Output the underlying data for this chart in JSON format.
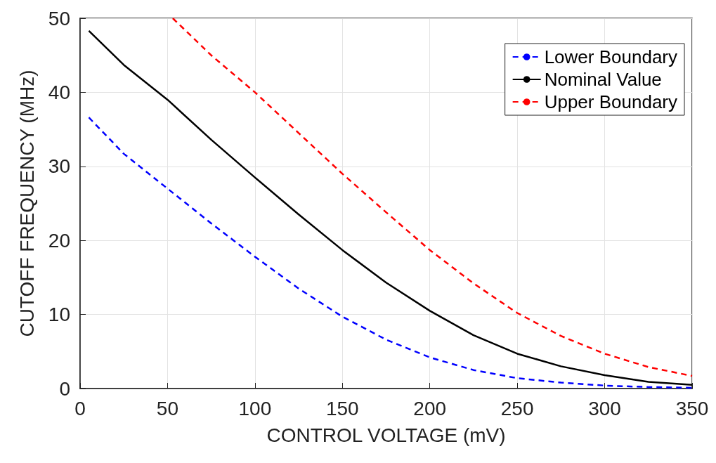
{
  "chart_data": {
    "type": "line",
    "xlabel": "CONTROL VOLTAGE (mV)",
    "ylabel": "CUTOFF FREQUENCY (MHz)",
    "xlim": [
      0,
      350
    ],
    "xticks": [
      0,
      50,
      100,
      150,
      200,
      250,
      300,
      350
    ],
    "ylim": [
      0,
      50
    ],
    "yticks": [
      0,
      10,
      20,
      30,
      40,
      50
    ],
    "grid": true,
    "legend": "top right",
    "marker": "none",
    "series": [
      {
        "name": "Lower Boundary",
        "color": "#0000ff",
        "line_style": "dashed",
        "x": [
          5,
          25,
          50,
          75,
          100,
          125,
          150,
          175,
          200,
          225,
          250,
          275,
          300,
          325,
          350
        ],
        "values": [
          36.6,
          31.7,
          27,
          22.3,
          17.8,
          13.5,
          9.7,
          6.6,
          4.2,
          2.5,
          1.4,
          0.8,
          0.4,
          0.2,
          0.1
        ]
      },
      {
        "name": "Nominal Value",
        "color": "#000000",
        "line_style": "solid",
        "x": [
          5,
          25,
          50,
          75,
          100,
          125,
          150,
          175,
          200,
          225,
          250,
          275,
          300,
          325,
          350
        ],
        "values": [
          48.3,
          43.7,
          39,
          33.6,
          28.5,
          23.5,
          18.7,
          14.3,
          10.5,
          7.2,
          4.7,
          3,
          1.8,
          0.9,
          0.5
        ]
      },
      {
        "name": "Upper Boundary",
        "color": "#ff0000",
        "line_style": "dashed",
        "x": [
          53,
          75,
          100,
          125,
          150,
          175,
          200,
          225,
          250,
          275,
          300,
          325,
          350
        ],
        "values": [
          50,
          45,
          40,
          34.5,
          29,
          23.8,
          18.7,
          14.2,
          10.2,
          7.1,
          4.7,
          2.9,
          1.7
        ]
      }
    ]
  }
}
